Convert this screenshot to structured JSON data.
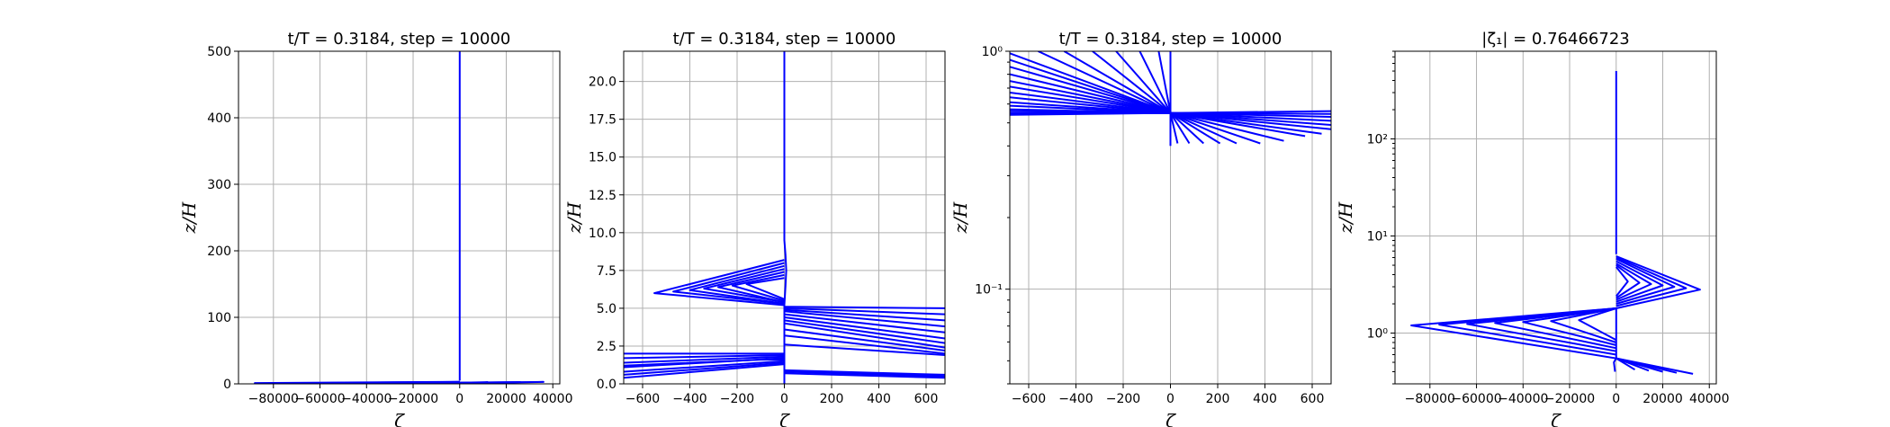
{
  "chart_data": [
    {
      "type": "line",
      "title": "t/T = 0.3184, step = 10000",
      "xlabel": "ζ",
      "ylabel": "z/H",
      "xlim": [
        -95000,
        43000
      ],
      "ylim": [
        0,
        500
      ],
      "yscale": "linear",
      "grid": true,
      "xticks": [
        -80000,
        -60000,
        -40000,
        -20000,
        0,
        20000,
        40000
      ],
      "xtick_labels": [
        "−80000",
        "−60000",
        "−40000",
        "−20000",
        "0",
        "20000",
        "40000"
      ],
      "yticks": [
        0,
        100,
        200,
        300,
        400,
        500
      ],
      "ytick_labels": [
        "0",
        "100",
        "200",
        "300",
        "400",
        "500"
      ],
      "color": "#0000ff",
      "series": [
        {
          "x": [
            0,
            0,
            0,
            0,
            0
          ],
          "y": [
            500,
            400,
            200,
            20,
            5
          ]
        },
        {
          "x": [
            0,
            -88000,
            0,
            36000,
            0
          ],
          "y": [
            3,
            1.2,
            1.8,
            2.8,
            0.5
          ]
        },
        {
          "x": [
            0,
            -60000,
            0,
            26000,
            0
          ],
          "y": [
            3,
            1.3,
            1.8,
            2.7,
            0.5
          ]
        },
        {
          "x": [
            0,
            -30000,
            0,
            12000,
            0
          ],
          "y": [
            3,
            1.4,
            1.8,
            2.5,
            0.5
          ]
        }
      ]
    },
    {
      "type": "line",
      "title": "t/T = 0.3184, step = 10000",
      "xlabel": "ζ",
      "ylabel": "z/H",
      "xlim": [
        -680,
        680
      ],
      "ylim": [
        0,
        22
      ],
      "yscale": "linear",
      "grid": true,
      "xticks": [
        -600,
        -400,
        -200,
        0,
        200,
        400,
        600
      ],
      "xtick_labels": [
        "−600",
        "−400",
        "−200",
        "0",
        "200",
        "400",
        "600"
      ],
      "yticks": [
        0,
        2.5,
        5,
        7.5,
        10,
        12.5,
        15,
        17.5,
        20
      ],
      "ytick_labels": [
        "0.0",
        "2.5",
        "5.0",
        "7.5",
        "10.0",
        "12.5",
        "15.0",
        "17.5",
        "20.0"
      ],
      "color": "#0000ff",
      "series": [
        {
          "x": [
            0,
            0,
            0,
            0,
            5,
            8,
            5,
            0
          ],
          "y": [
            22,
            15,
            11,
            9.5,
            8.5,
            7.5,
            6.5,
            5.2
          ]
        },
        {
          "x": [
            0,
            -550,
            0
          ],
          "y": [
            8.2,
            6.0,
            5.2
          ]
        },
        {
          "x": [
            0,
            -470,
            0
          ],
          "y": [
            8.0,
            6.1,
            5.3
          ]
        },
        {
          "x": [
            0,
            -400,
            0
          ],
          "y": [
            7.8,
            6.2,
            5.3
          ]
        },
        {
          "x": [
            0,
            -340,
            0
          ],
          "y": [
            7.6,
            6.3,
            5.4
          ]
        },
        {
          "x": [
            0,
            -280,
            0
          ],
          "y": [
            7.4,
            6.4,
            5.4
          ]
        },
        {
          "x": [
            0,
            -220,
            0
          ],
          "y": [
            7.2,
            6.5,
            5.5
          ]
        },
        {
          "x": [
            0,
            -160,
            0
          ],
          "y": [
            7.0,
            6.6,
            5.6
          ]
        },
        {
          "x": [
            0,
            680
          ],
          "y": [
            5.1,
            5.0
          ]
        },
        {
          "x": [
            0,
            680
          ],
          "y": [
            5.0,
            4.6
          ]
        },
        {
          "x": [
            0,
            680
          ],
          "y": [
            4.9,
            4.2
          ]
        },
        {
          "x": [
            0,
            680
          ],
          "y": [
            4.8,
            3.8
          ]
        },
        {
          "x": [
            0,
            680
          ],
          "y": [
            4.6,
            3.4
          ]
        },
        {
          "x": [
            0,
            680
          ],
          "y": [
            4.4,
            3.0
          ]
        },
        {
          "x": [
            0,
            680
          ],
          "y": [
            4.2,
            2.7
          ]
        },
        {
          "x": [
            0,
            680
          ],
          "y": [
            4.0,
            2.4
          ]
        },
        {
          "x": [
            0,
            680
          ],
          "y": [
            3.6,
            2.2
          ]
        },
        {
          "x": [
            0,
            680
          ],
          "y": [
            3.2,
            2.0
          ]
        },
        {
          "x": [
            0,
            680
          ],
          "y": [
            2.6,
            1.9
          ]
        },
        {
          "x": [
            0,
            -680
          ],
          "y": [
            2.0,
            2.0
          ]
        },
        {
          "x": [
            0,
            -680
          ],
          "y": [
            1.9,
            1.7
          ]
        },
        {
          "x": [
            0,
            -680
          ],
          "y": [
            1.8,
            1.4
          ]
        },
        {
          "x": [
            0,
            -680
          ],
          "y": [
            1.7,
            1.1
          ]
        },
        {
          "x": [
            -680,
            -100,
            0
          ],
          "y": [
            1.2,
            1.6,
            1.6
          ]
        },
        {
          "x": [
            0,
            -680
          ],
          "y": [
            1.5,
            0.8
          ]
        },
        {
          "x": [
            0,
            -680
          ],
          "y": [
            1.4,
            0.6
          ]
        },
        {
          "x": [
            0,
            -680
          ],
          "y": [
            1.3,
            0.4
          ]
        },
        {
          "x": [
            0,
            680
          ],
          "y": [
            0.9,
            0.6
          ]
        },
        {
          "x": [
            0,
            680
          ],
          "y": [
            0.8,
            0.5
          ]
        },
        {
          "x": [
            0,
            680
          ],
          "y": [
            0.7,
            0.4
          ]
        },
        {
          "x": [
            0,
            0
          ],
          "y": [
            0.0,
            5.2
          ]
        }
      ]
    },
    {
      "type": "line",
      "title": "t/T = 0.3184, step = 10000",
      "xlabel": "ζ",
      "ylabel": "z/H",
      "xlim": [
        -680,
        680
      ],
      "ylim": [
        0.04,
        1
      ],
      "yscale": "log",
      "grid": true,
      "xticks": [
        -600,
        -400,
        -200,
        0,
        200,
        400,
        600
      ],
      "xtick_labels": [
        "−600",
        "−400",
        "−200",
        "0",
        "200",
        "400",
        "600"
      ],
      "yticks": [
        0.1,
        1
      ],
      "ytick_labels": [
        "10⁻¹",
        "10⁰"
      ],
      "color": "#0000ff",
      "series": [
        {
          "x": [
            0,
            0,
            0
          ],
          "y": [
            1,
            0.55,
            0.4
          ]
        },
        {
          "x": [
            -680,
            0
          ],
          "y": [
            0.98,
            0.55
          ]
        },
        {
          "x": [
            -680,
            0
          ],
          "y": [
            0.92,
            0.55
          ]
        },
        {
          "x": [
            -680,
            0
          ],
          "y": [
            0.86,
            0.55
          ]
        },
        {
          "x": [
            -680,
            0
          ],
          "y": [
            0.8,
            0.55
          ]
        },
        {
          "x": [
            -680,
            0
          ],
          "y": [
            0.75,
            0.55
          ]
        },
        {
          "x": [
            -680,
            0
          ],
          "y": [
            0.71,
            0.55
          ]
        },
        {
          "x": [
            -680,
            0
          ],
          "y": [
            0.67,
            0.55
          ]
        },
        {
          "x": [
            -680,
            0
          ],
          "y": [
            0.64,
            0.55
          ]
        },
        {
          "x": [
            -680,
            0
          ],
          "y": [
            0.61,
            0.55
          ]
        },
        {
          "x": [
            -680,
            0
          ],
          "y": [
            0.59,
            0.55
          ]
        },
        {
          "x": [
            -680,
            0
          ],
          "y": [
            0.57,
            0.55
          ]
        },
        {
          "x": [
            -680,
            0
          ],
          "y": [
            0.56,
            0.55
          ]
        },
        {
          "x": [
            -680,
            0
          ],
          "y": [
            0.55,
            0.55
          ]
        },
        {
          "x": [
            -680,
            0
          ],
          "y": [
            0.545,
            0.55
          ]
        },
        {
          "x": [
            -680,
            0
          ],
          "y": [
            0.54,
            0.55
          ]
        },
        {
          "x": [
            -560,
            0
          ],
          "y": [
            1,
            0.55
          ]
        },
        {
          "x": [
            -450,
            0
          ],
          "y": [
            1,
            0.55
          ]
        },
        {
          "x": [
            -330,
            0
          ],
          "y": [
            1,
            0.55
          ]
        },
        {
          "x": [
            -230,
            0
          ],
          "y": [
            1,
            0.55
          ]
        },
        {
          "x": [
            -130,
            0
          ],
          "y": [
            1,
            0.55
          ]
        },
        {
          "x": [
            -50,
            0
          ],
          "y": [
            1,
            0.55
          ]
        },
        {
          "x": [
            0,
            680
          ],
          "y": [
            0.55,
            0.56
          ]
        },
        {
          "x": [
            0,
            680
          ],
          "y": [
            0.55,
            0.545
          ]
        },
        {
          "x": [
            0,
            680
          ],
          "y": [
            0.55,
            0.53
          ]
        },
        {
          "x": [
            0,
            680
          ],
          "y": [
            0.55,
            0.51
          ]
        },
        {
          "x": [
            0,
            680
          ],
          "y": [
            0.55,
            0.49
          ]
        },
        {
          "x": [
            0,
            680
          ],
          "y": [
            0.55,
            0.47
          ]
        },
        {
          "x": [
            0,
            640
          ],
          "y": [
            0.55,
            0.45
          ]
        },
        {
          "x": [
            0,
            570
          ],
          "y": [
            0.55,
            0.44
          ]
        },
        {
          "x": [
            0,
            480
          ],
          "y": [
            0.55,
            0.42
          ]
        },
        {
          "x": [
            0,
            380
          ],
          "y": [
            0.55,
            0.41
          ]
        },
        {
          "x": [
            0,
            280
          ],
          "y": [
            0.55,
            0.41
          ]
        },
        {
          "x": [
            0,
            210
          ],
          "y": [
            0.55,
            0.41
          ]
        },
        {
          "x": [
            0,
            140
          ],
          "y": [
            0.55,
            0.41
          ]
        },
        {
          "x": [
            0,
            80
          ],
          "y": [
            0.55,
            0.41
          ]
        },
        {
          "x": [
            0,
            30
          ],
          "y": [
            0.55,
            0.41
          ]
        }
      ]
    },
    {
      "type": "line",
      "title": "|ζ₁| = 0.76466723",
      "xlabel": "ζ",
      "ylabel": "z/H",
      "xlim": [
        -95000,
        43000
      ],
      "ylim": [
        0.3,
        800
      ],
      "yscale": "log",
      "grid": true,
      "xticks": [
        -80000,
        -60000,
        -40000,
        -20000,
        0,
        20000,
        40000
      ],
      "xtick_labels": [
        "−80000",
        "−60000",
        "−40000",
        "−20000",
        "0",
        "20000",
        "40000"
      ],
      "yticks": [
        1,
        10,
        100
      ],
      "ytick_labels": [
        "10⁰",
        "10¹",
        "10²"
      ],
      "color": "#0000ff",
      "series": [
        {
          "x": [
            0,
            0,
            0,
            0
          ],
          "y": [
            500,
            50,
            8,
            6.5
          ]
        },
        {
          "x": [
            0,
            36000,
            0
          ],
          "y": [
            6.2,
            2.8,
            1.8
          ]
        },
        {
          "x": [
            0,
            30000,
            0
          ],
          "y": [
            6.0,
            2.9,
            1.9
          ]
        },
        {
          "x": [
            0,
            25000,
            0
          ],
          "y": [
            5.8,
            3.0,
            2.0
          ]
        },
        {
          "x": [
            0,
            20000,
            0
          ],
          "y": [
            5.5,
            3.1,
            2.1
          ]
        },
        {
          "x": [
            0,
            15000,
            0
          ],
          "y": [
            5.2,
            3.2,
            2.2
          ]
        },
        {
          "x": [
            0,
            10000,
            0
          ],
          "y": [
            5.0,
            3.3,
            2.3
          ]
        },
        {
          "x": [
            0,
            5000,
            0
          ],
          "y": [
            4.8,
            3.4,
            2.4
          ]
        },
        {
          "x": [
            0,
            -88000,
            0
          ],
          "y": [
            1.8,
            1.2,
            0.55
          ]
        },
        {
          "x": [
            0,
            -76000,
            0
          ],
          "y": [
            1.8,
            1.22,
            0.6
          ]
        },
        {
          "x": [
            0,
            -64000,
            0
          ],
          "y": [
            1.8,
            1.24,
            0.65
          ]
        },
        {
          "x": [
            0,
            -52000,
            0
          ],
          "y": [
            1.8,
            1.27,
            0.7
          ]
        },
        {
          "x": [
            0,
            -40000,
            0
          ],
          "y": [
            1.8,
            1.3,
            0.75
          ]
        },
        {
          "x": [
            0,
            -28000,
            0
          ],
          "y": [
            1.8,
            1.33,
            0.8
          ]
        },
        {
          "x": [
            0,
            -16000,
            0
          ],
          "y": [
            1.8,
            1.36,
            0.85
          ]
        },
        {
          "x": [
            -500,
            -1000,
            0,
            0
          ],
          "y": [
            0.4,
            0.5,
            0.55,
            1.8
          ]
        },
        {
          "x": [
            0,
            33000
          ],
          "y": [
            0.55,
            0.38
          ]
        },
        {
          "x": [
            0,
            26000
          ],
          "y": [
            0.55,
            0.39
          ]
        },
        {
          "x": [
            0,
            20000
          ],
          "y": [
            0.55,
            0.4
          ]
        },
        {
          "x": [
            0,
            14000
          ],
          "y": [
            0.55,
            0.41
          ]
        },
        {
          "x": [
            0,
            8000
          ],
          "y": [
            0.55,
            0.42
          ]
        }
      ]
    }
  ]
}
